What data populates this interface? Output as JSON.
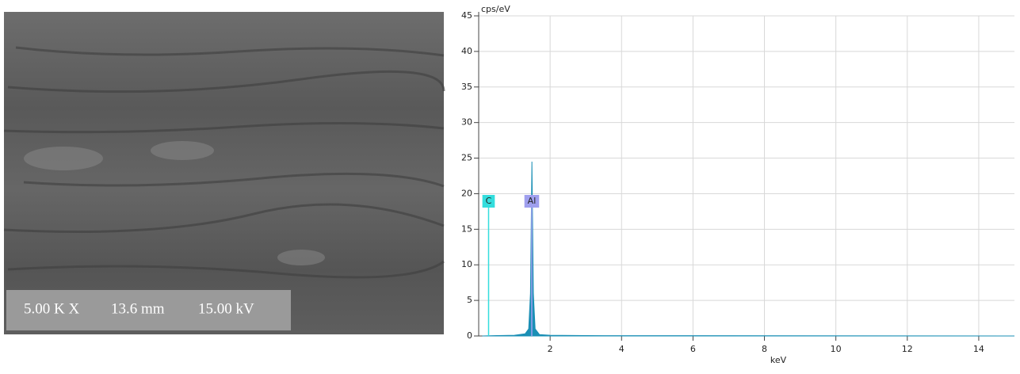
{
  "sem_image": {
    "labels": [
      "5.00 K X",
      "13.6 mm",
      "15.00 kV"
    ]
  },
  "chart_data": {
    "type": "area",
    "x_label": "keV",
    "y_label": "cps/eV",
    "xlim": [
      0,
      15
    ],
    "ylim": [
      0,
      45
    ],
    "xticks": [
      2,
      4,
      6,
      8,
      10,
      12,
      14
    ],
    "yticks": [
      0,
      5,
      10,
      15,
      20,
      25,
      30,
      35,
      40,
      45
    ],
    "grid": true,
    "series": [
      {
        "color": "#1a8fb5",
        "x": [
          0.1,
          0.5,
          1.0,
          1.3,
          1.4,
          1.45,
          1.49,
          1.53,
          1.58,
          1.7,
          2.0,
          3.0,
          15.0
        ],
        "values": [
          0,
          0.05,
          0.1,
          0.3,
          1,
          6,
          24.5,
          6,
          1,
          0.2,
          0.1,
          0.05,
          0
        ]
      }
    ],
    "elements": [
      {
        "label": "C",
        "x": 0.277,
        "color": "#33dddd"
      },
      {
        "label": "Al",
        "x": 1.486,
        "color": "#9f9fee"
      }
    ]
  }
}
